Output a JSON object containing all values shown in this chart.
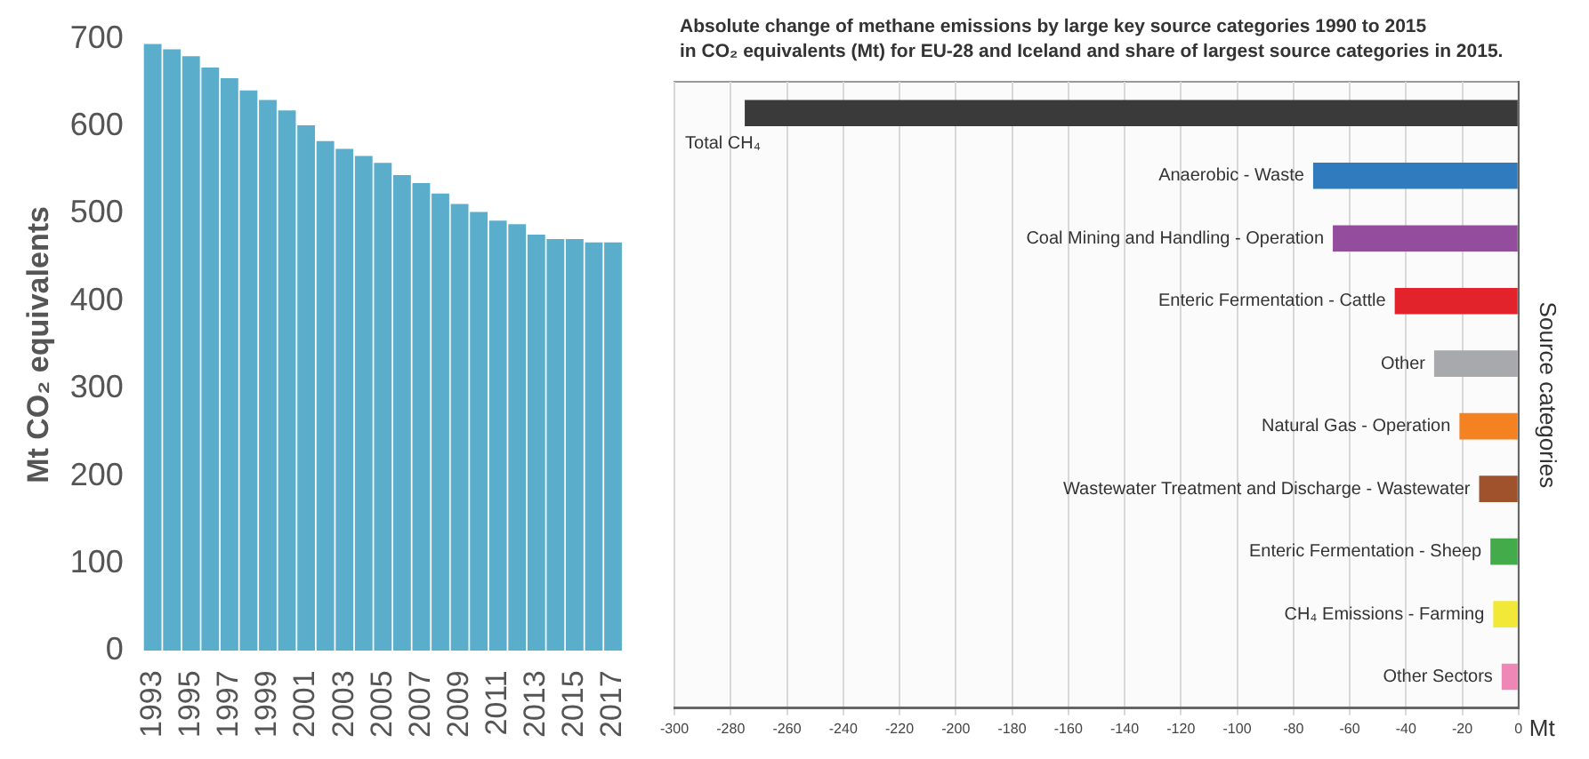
{
  "chart_data": [
    {
      "type": "bar",
      "ylabel": "Mt CO₂ equivalents",
      "categories": [
        "1993",
        null,
        "1995",
        null,
        "1997",
        null,
        "1999",
        null,
        "2001",
        null,
        "2003",
        null,
        "2005",
        null,
        "2007",
        null,
        "2009",
        null,
        "2011",
        null,
        "2013",
        null,
        "2015",
        null,
        "2017"
      ],
      "values": [
        694,
        688,
        680,
        667,
        655,
        641,
        630,
        618,
        601,
        583,
        574,
        566,
        558,
        544,
        535,
        523,
        511,
        502,
        492,
        488,
        476,
        471,
        471,
        467,
        467
      ],
      "color": "#5aaecb",
      "ylim": [
        0,
        700
      ],
      "yticks": [
        0,
        100,
        200,
        300,
        400,
        500,
        600,
        700
      ],
      "grid": false
    },
    {
      "type": "bar",
      "orientation": "horizontal",
      "title": "Absolute change of methane emissions by large key source categories 1990 to 2015",
      "subtitle": "in CO₂ equivalents (Mt) for EU-28 and Iceland and share of largest source categories in 2015.",
      "xlabel": "Mt",
      "ylabel": "Source categories",
      "categories": [
        "Total CH₄",
        "Anaerobic - Waste",
        "Coal Mining and Handling - Operation",
        "Enteric Fermentation - Cattle",
        "Other",
        "Natural Gas - Operation",
        "Wastewater Treatment and Discharge - Wastewater",
        "Enteric Fermentation - Sheep",
        "CH₄ Emissions - Farming",
        "Other Sectors"
      ],
      "values": [
        -275,
        -73,
        -66,
        -44,
        -30,
        -21,
        -14,
        -10,
        -9,
        -6
      ],
      "colors": [
        "#3a3a3a",
        "#2f7bbd",
        "#944c9d",
        "#e3232b",
        "#a7a9ac",
        "#f48220",
        "#a0522d",
        "#44ab4a",
        "#f2e838",
        "#ee86b6"
      ],
      "xlim": [
        -300,
        0
      ],
      "xticks": [
        -300,
        -280,
        -260,
        -240,
        -220,
        -200,
        -180,
        -160,
        -140,
        -120,
        -100,
        -80,
        -60,
        -40,
        -20,
        0
      ],
      "grid": "x"
    }
  ]
}
